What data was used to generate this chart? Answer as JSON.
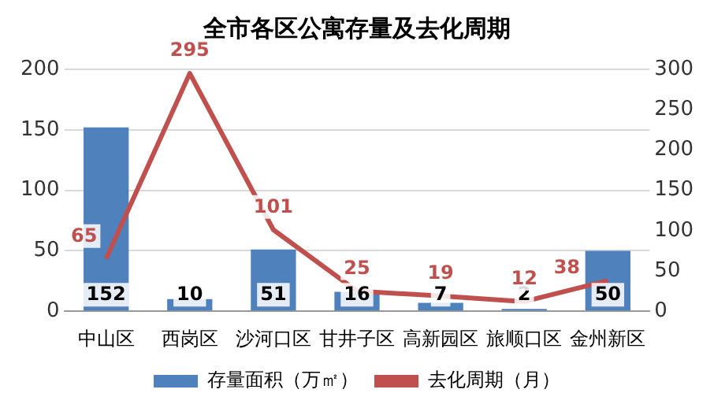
{
  "chart_data": {
    "type": "bar",
    "title": "全市各区公寓存量及去化周期",
    "categories": [
      "中山区",
      "西岗区",
      "沙河口区",
      "甘井子区",
      "高新园区",
      "旅顺口区",
      "金州新区"
    ],
    "series": [
      {
        "name": "存量面积（万㎡）",
        "color": "#4f81bd",
        "values": [
          152,
          10,
          51,
          16,
          7,
          2,
          50
        ]
      },
      {
        "name": "去化周期（月）",
        "type": "line",
        "axis": "y2",
        "color": "#c0504d",
        "values": [
          65,
          295,
          101,
          25,
          19,
          12,
          38
        ]
      }
    ],
    "ylim": [
      0,
      200
    ],
    "yticks": [
      0,
      50,
      100,
      150,
      200
    ],
    "y2lim": [
      0,
      300
    ],
    "y2ticks": [
      0,
      50,
      100,
      150,
      200,
      250,
      300
    ],
    "grid": "y",
    "legend": "bottom",
    "marker": "none",
    "line_style": "solid",
    "data_labels": true
  }
}
